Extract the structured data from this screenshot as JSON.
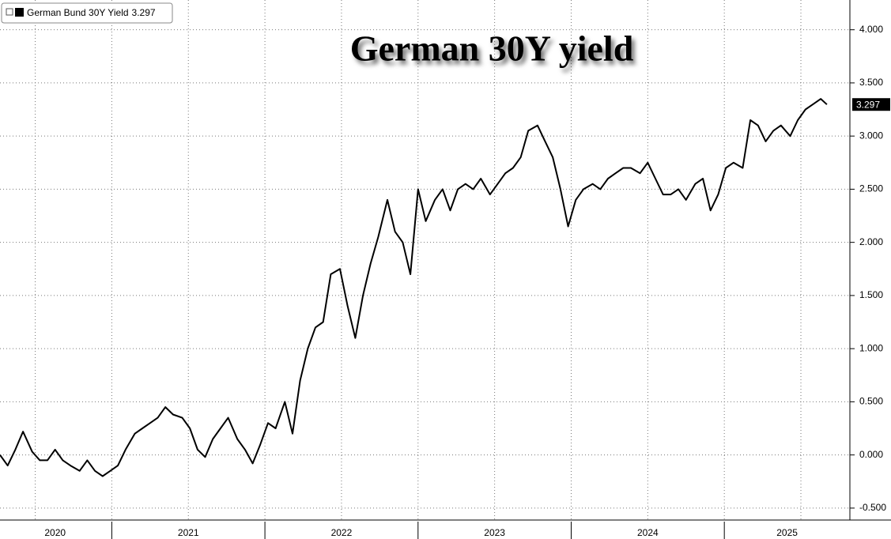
{
  "chart_data": {
    "type": "line",
    "title": "German 30Y yield",
    "series": [
      {
        "name": "German Bund 30Y Yield",
        "color": "#000000",
        "x": [
          2020.27,
          2020.32,
          2020.37,
          2020.42,
          2020.48,
          2020.53,
          2020.58,
          2020.63,
          2020.68,
          2020.73,
          2020.79,
          2020.84,
          2020.89,
          2020.94,
          2020.99,
          2021.04,
          2021.09,
          2021.15,
          2021.2,
          2021.25,
          2021.3,
          2021.35,
          2021.4,
          2021.46,
          2021.51,
          2021.56,
          2021.61,
          2021.66,
          2021.71,
          2021.76,
          2021.82,
          2021.87,
          2021.92,
          2021.97,
          2022.02,
          2022.07,
          2022.13,
          2022.18,
          2022.23,
          2022.28,
          2022.33,
          2022.38,
          2022.43,
          2022.49,
          2022.54,
          2022.59,
          2022.64,
          2022.69,
          2022.74,
          2022.8,
          2022.85,
          2022.9,
          2022.95,
          2023.0,
          2023.05,
          2023.11,
          2023.16,
          2023.21,
          2023.26,
          2023.31,
          2023.36,
          2023.41,
          2023.47,
          2023.52,
          2023.57,
          2023.62,
          2023.67,
          2023.72,
          2023.78,
          2023.83,
          2023.88,
          2023.93,
          2023.98,
          2024.03,
          2024.08,
          2024.14,
          2024.19,
          2024.24,
          2024.29,
          2024.34,
          2024.39,
          2024.45,
          2024.5,
          2024.55,
          2024.6,
          2024.65,
          2024.7,
          2024.75,
          2024.81,
          2024.86,
          2024.91,
          2024.96,
          2025.01,
          2025.06,
          2025.12,
          2025.17,
          2025.22,
          2025.27,
          2025.32,
          2025.37,
          2025.43,
          2025.48,
          2025.53,
          2025.58,
          2025.63,
          2025.67
        ],
        "values": [
          0.0,
          -0.1,
          0.05,
          0.22,
          0.03,
          -0.05,
          -0.05,
          0.05,
          -0.05,
          -0.1,
          -0.15,
          -0.05,
          -0.15,
          -0.2,
          -0.15,
          -0.1,
          0.05,
          0.2,
          0.25,
          0.3,
          0.35,
          0.45,
          0.38,
          0.35,
          0.25,
          0.05,
          -0.02,
          0.15,
          0.25,
          0.35,
          0.15,
          0.05,
          -0.08,
          0.1,
          0.3,
          0.25,
          0.5,
          0.2,
          0.7,
          1.0,
          1.2,
          1.25,
          1.7,
          1.75,
          1.4,
          1.1,
          1.5,
          1.8,
          2.05,
          2.4,
          2.1,
          2.0,
          1.7,
          2.5,
          2.2,
          2.4,
          2.5,
          2.3,
          2.5,
          2.55,
          2.5,
          2.6,
          2.45,
          2.55,
          2.65,
          2.7,
          2.8,
          3.05,
          3.1,
          2.95,
          2.8,
          2.5,
          2.15,
          2.4,
          2.5,
          2.55,
          2.5,
          2.6,
          2.65,
          2.7,
          2.7,
          2.65,
          2.75,
          2.6,
          2.45,
          2.45,
          2.5,
          2.4,
          2.55,
          2.6,
          2.3,
          2.45,
          2.7,
          2.75,
          2.7,
          3.15,
          3.1,
          2.95,
          3.05,
          3.1,
          3.0,
          3.15,
          3.25,
          3.3,
          3.35,
          3.297
        ]
      }
    ],
    "xlim": [
      2020.27,
      2025.82
    ],
    "xticks": [
      {
        "value": 2020.63,
        "label": "2020"
      },
      {
        "value": 2021.5,
        "label": "2021"
      },
      {
        "value": 2022.5,
        "label": "2022"
      },
      {
        "value": 2023.5,
        "label": "2023"
      },
      {
        "value": 2024.5,
        "label": "2024"
      },
      {
        "value": 2025.41,
        "label": "2025"
      }
    ],
    "ylim": [
      -0.59,
      4.28
    ],
    "yticks": [
      {
        "value": -0.5,
        "label": "-0.500"
      },
      {
        "value": 0,
        "label": "0.000"
      },
      {
        "value": 0.5,
        "label": "0.500"
      },
      {
        "value": 1,
        "label": "1.000"
      },
      {
        "value": 1.5,
        "label": "1.500"
      },
      {
        "value": 2,
        "label": "2.000"
      },
      {
        "value": 2.5,
        "label": "2.500"
      },
      {
        "value": 3,
        "label": "3.000"
      },
      {
        "value": 3.5,
        "label": "3.500"
      },
      {
        "value": 4,
        "label": "4.000"
      }
    ],
    "grid": true,
    "legend": "top-left"
  }
}
